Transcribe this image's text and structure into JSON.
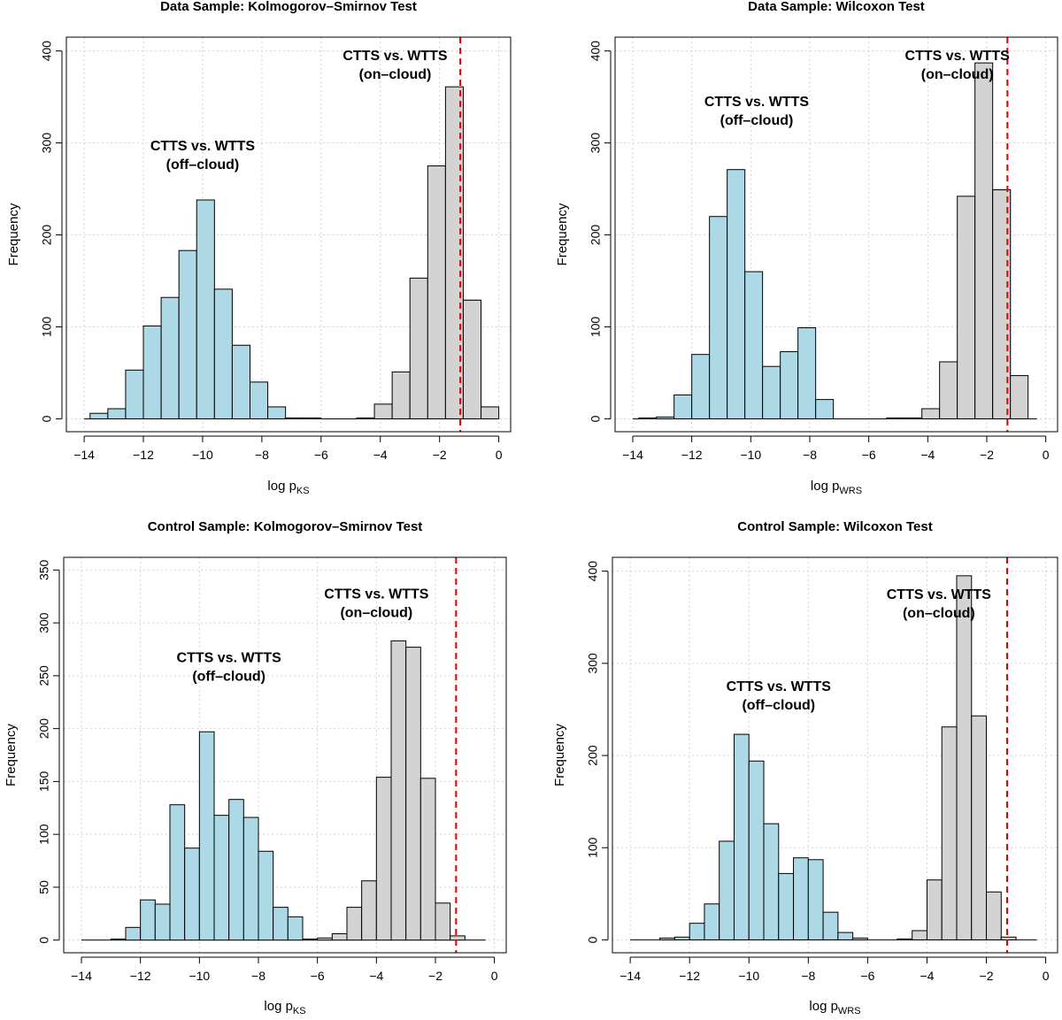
{
  "chart_data": [
    {
      "type": "bar",
      "title": "Data Sample: Kolmogorov–Smirnov Test",
      "xlabel": "log p",
      "xlabel_sub": "KS",
      "ylabel": "Frequency",
      "xlim": [
        -14.6,
        0.4
      ],
      "ylim": [
        -14,
        415
      ],
      "xticks": [
        -14,
        -12,
        -10,
        -8,
        -6,
        -4,
        -2,
        0
      ],
      "xtick_labels": [
        "−14",
        "−12",
        "−10",
        "−8",
        "−6",
        "−4",
        "−2",
        "0"
      ],
      "yticks": [
        0,
        100,
        200,
        300,
        400
      ],
      "ytick_labels": [
        "0",
        "100",
        "200",
        "300",
        "400"
      ],
      "grid": true,
      "threshold": -1.3,
      "bin_width": 0.6,
      "series": [
        {
          "name": "CTTS vs. WTTS (off-cloud)",
          "bin_starts": [
            -13.8,
            -13.2,
            -12.6,
            -12.0,
            -11.4,
            -10.8,
            -10.2,
            -9.6,
            -9.0,
            -8.4,
            -7.8,
            -7.2,
            -6.6,
            -6.0
          ],
          "values": [
            6,
            11,
            53,
            101,
            132,
            183,
            238,
            141,
            80,
            40,
            13,
            1,
            1,
            0
          ]
        },
        {
          "name": "CTTS vs. WTTS (on-cloud)",
          "bin_starts": [
            -5.4,
            -4.8,
            -4.2,
            -3.6,
            -3.0,
            -2.4,
            -1.8,
            -1.2
          ],
          "values": [
            0,
            1,
            16,
            51,
            153,
            275,
            361,
            129
          ]
        }
      ],
      "extra_bins": [
        {
          "start": -1.2,
          "value": 129
        },
        {
          "start": -0.6,
          "value": 13
        }
      ],
      "annotations": [
        {
          "lines": [
            "CTTS vs. WTTS",
            "(off–cloud)"
          ],
          "x": -10.0,
          "y": 292
        },
        {
          "lines": [
            "CTTS vs. WTTS",
            "(on–cloud)"
          ],
          "x": -3.5,
          "y": 390
        }
      ]
    },
    {
      "type": "bar",
      "title": "Data Sample: Wilcoxon Test",
      "xlabel": "log p",
      "xlabel_sub": "WRS",
      "ylabel": "Frequency",
      "xlim": [
        -14.6,
        0.4
      ],
      "ylim": [
        -14,
        415
      ],
      "xticks": [
        -14,
        -12,
        -10,
        -8,
        -6,
        -4,
        -2,
        0
      ],
      "xtick_labels": [
        "−14",
        "−12",
        "−10",
        "−8",
        "−6",
        "−4",
        "−2",
        "0"
      ],
      "yticks": [
        0,
        100,
        200,
        300,
        400
      ],
      "ytick_labels": [
        "0",
        "100",
        "200",
        "300",
        "400"
      ],
      "grid": true,
      "threshold": -1.3,
      "bin_width": 0.6,
      "series": [
        {
          "name": "CTTS vs. WTTS (off-cloud)",
          "bin_starts": [
            -13.8,
            -13.2,
            -12.6,
            -12.0,
            -11.4,
            -10.8,
            -10.2,
            -9.6,
            -9.0,
            -8.4,
            -7.8
          ],
          "values": [
            1,
            2,
            26,
            70,
            220,
            271,
            160,
            57,
            73,
            99,
            21
          ]
        },
        {
          "name": "CTTS vs. WTTS (on-cloud)",
          "bin_starts": [
            -5.4,
            -4.8,
            -4.2,
            -3.6,
            -3.0,
            -2.4,
            -1.8
          ],
          "values": [
            1,
            1,
            11,
            62,
            242,
            387,
            249
          ]
        }
      ],
      "extra_bins": [
        {
          "start": -1.8,
          "value": 249
        },
        {
          "start": -1.2,
          "value": 47
        }
      ],
      "annotations": [
        {
          "lines": [
            "CTTS vs. WTTS",
            "(off–cloud)"
          ],
          "x": -9.8,
          "y": 340
        },
        {
          "lines": [
            "CTTS vs. WTTS",
            "(on–cloud)"
          ],
          "x": -3.0,
          "y": 390
        }
      ]
    },
    {
      "type": "bar",
      "title": "Control Sample: Kolmogorov–Smirnov Test",
      "xlabel": "log p",
      "xlabel_sub": "KS",
      "ylabel": "Frequency",
      "xlim": [
        -14.6,
        0.4
      ],
      "ylim": [
        -12,
        362
      ],
      "xticks": [
        -14,
        -12,
        -10,
        -8,
        -6,
        -4,
        -2,
        0
      ],
      "xtick_labels": [
        "−14",
        "−12",
        "−10",
        "−8",
        "−6",
        "−4",
        "−2",
        "0"
      ],
      "yticks": [
        0,
        50,
        100,
        150,
        200,
        250,
        300,
        350
      ],
      "ytick_labels": [
        "0",
        "50",
        "100",
        "150",
        "200",
        "250",
        "300",
        "350"
      ],
      "grid": true,
      "threshold": -1.3,
      "bin_width": 0.5,
      "series": [
        {
          "name": "CTTS vs. WTTS (off-cloud)",
          "bin_starts": [
            -13.0,
            -12.5,
            -12.0,
            -11.5,
            -11.0,
            -10.5,
            -10.0,
            -9.5,
            -9.0,
            -8.5,
            -8.0,
            -7.5,
            -7.0,
            -6.5,
            -6.0
          ],
          "values": [
            1,
            12,
            38,
            34,
            128,
            87,
            197,
            118,
            133,
            116,
            84,
            31,
            22,
            1,
            2
          ]
        },
        {
          "name": "CTTS vs. WTTS (on-cloud)",
          "bin_starts": [
            -5.5,
            -5.0,
            -4.5,
            -4.0,
            -3.5,
            -3.0,
            -2.5,
            -2.0,
            -1.5
          ],
          "values": [
            6,
            31,
            56,
            154,
            283,
            277,
            153,
            35,
            4
          ]
        }
      ],
      "annotations": [
        {
          "lines": [
            "CTTS vs. WTTS",
            "(off–cloud)"
          ],
          "x": -9.0,
          "y": 263
        },
        {
          "lines": [
            "CTTS vs. WTTS",
            "(on–cloud)"
          ],
          "x": -4.0,
          "y": 323
        }
      ]
    },
    {
      "type": "bar",
      "title": "Control Sample: Wilcoxon Test",
      "xlabel": "log p",
      "xlabel_sub": "WRS",
      "ylabel": "Frequency",
      "xlim": [
        -14.6,
        0.4
      ],
      "ylim": [
        -14,
        415
      ],
      "xticks": [
        -14,
        -12,
        -10,
        -8,
        -6,
        -4,
        -2,
        0
      ],
      "xtick_labels": [
        "−14",
        "−12",
        "−10",
        "−8",
        "−6",
        "−4",
        "−2",
        "0"
      ],
      "yticks": [
        0,
        100,
        200,
        300,
        400
      ],
      "ytick_labels": [
        "0",
        "100",
        "200",
        "300",
        "400"
      ],
      "grid": true,
      "threshold": -1.3,
      "bin_width": 0.5,
      "series": [
        {
          "name": "CTTS vs. WTTS (off-cloud)",
          "bin_starts": [
            -13.0,
            -12.5,
            -12.0,
            -11.5,
            -11.0,
            -10.5,
            -10.0,
            -9.5,
            -9.0,
            -8.5,
            -8.0,
            -7.5,
            -7.0,
            -6.5
          ],
          "values": [
            2,
            3,
            18,
            39,
            107,
            223,
            194,
            126,
            72,
            89,
            87,
            30,
            8,
            2
          ]
        },
        {
          "name": "CTTS vs. WTTS (on-cloud)",
          "bin_starts": [
            -5.0,
            -4.5,
            -4.0,
            -3.5,
            -3.0,
            -2.5,
            -2.0,
            -1.5
          ],
          "values": [
            1,
            10,
            65,
            231,
            395,
            243,
            52,
            3
          ]
        }
      ],
      "annotations": [
        {
          "lines": [
            "CTTS vs. WTTS",
            "(off–cloud)"
          ],
          "x": -9.0,
          "y": 270
        },
        {
          "lines": [
            "CTTS vs. WTTS",
            "(on–cloud)"
          ],
          "x": -3.6,
          "y": 370
        }
      ]
    }
  ]
}
